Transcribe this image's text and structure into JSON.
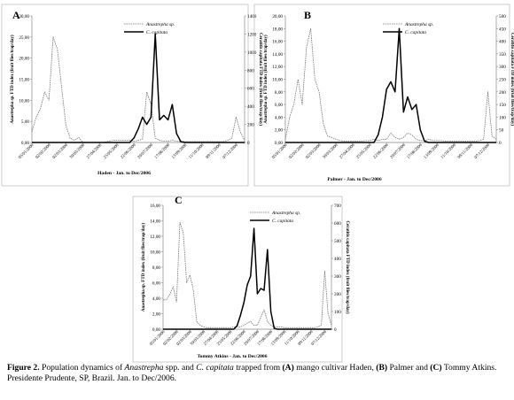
{
  "colors": {
    "anastrepha": "#777777",
    "ccapitata": "#000000",
    "axis": "#888888",
    "frame": "#aaaaaa"
  },
  "chart_data": [
    {
      "panel": "A",
      "type": "line",
      "xlabel": "Haden - Jan. to Dec/2006",
      "ylabel_left": "Anastrepha sp. FTD index (fruit flies/trap/day)",
      "ylabel_right": "Ceratitis capitata FTD index (fruit flies/trap/day)",
      "ylim_left": [
        0,
        30
      ],
      "ylim_right": [
        0,
        1400
      ],
      "yticks_left": [
        "0,00",
        "5,00",
        "10,00",
        "15,00",
        "20,00",
        "25,00",
        "30,00"
      ],
      "yticks_right": [
        "0",
        "200",
        "400",
        "600",
        "800",
        "1000",
        "1200",
        "1400"
      ],
      "xticks": [
        "05/01/2006",
        "02/02/2006",
        "02/03/2006",
        "30/03/2006",
        "27/04/2006",
        "25/05/2006",
        "22/06/2006",
        "20/07/2006",
        "17/08/2006",
        "13/09/2006",
        "11/10/2006",
        "09/11/2006",
        "07/12/2006"
      ],
      "legend": [
        "Anastrepha sp.",
        "C. capitata"
      ],
      "series": [
        {
          "name": "Anastrepha sp.",
          "axis": "left",
          "values": [
            2.5,
            6,
            8,
            12,
            10,
            25,
            22,
            13,
            4,
            1,
            0.5,
            1.2,
            0,
            0,
            0,
            0,
            0,
            0,
            0.3,
            0.5,
            0.5,
            0.5,
            0.5,
            0.5,
            0.3,
            0.5,
            0.8,
            12,
            9,
            1,
            0.5,
            0.3,
            0.3,
            0.5,
            0.3,
            0.2,
            0.2,
            0.2,
            0.2,
            0.2,
            0.2,
            0.2,
            0.2,
            0.2,
            0.2,
            0.2,
            0.5,
            1,
            6,
            2.5,
            0.5
          ]
        },
        {
          "name": "C. capitata",
          "axis": "right",
          "values": [
            0,
            0,
            0,
            0,
            0,
            0,
            0,
            0,
            0,
            0,
            0,
            0,
            0,
            0,
            0,
            0,
            0,
            0,
            0,
            0,
            0,
            0,
            0,
            0,
            50,
            150,
            280,
            200,
            280,
            1200,
            250,
            300,
            250,
            420,
            100,
            10,
            0,
            0,
            0,
            0,
            0,
            0,
            0,
            0,
            0,
            0,
            0,
            0,
            0,
            0,
            0
          ]
        }
      ]
    },
    {
      "panel": "B",
      "type": "line",
      "xlabel": "Palmer - Jan. to Dec/2006",
      "ylabel_left": "Anastrepha sp. FTD index (fruit flies/trap/day)",
      "ylabel_right": "Ceratitis capitata FTD index (fruit flies/trap/day)",
      "ylim_left": [
        0,
        20
      ],
      "ylim_right": [
        0,
        500
      ],
      "yticks_left": [
        "0,00",
        "2,00",
        "4,00",
        "6,00",
        "8,00",
        "10,00",
        "12,00",
        "14,00",
        "16,00",
        "18,00",
        "20,00"
      ],
      "yticks_right": [
        "0",
        "50",
        "100",
        "150",
        "200",
        "250",
        "300",
        "350",
        "400",
        "450",
        "500"
      ],
      "xticks": [
        "05/01/2006",
        "02/02/2006",
        "02/03/2006",
        "30/03/2006",
        "27/04/2006",
        "25/05/2006",
        "22/06/2006",
        "20/07/2006",
        "17/08/2006",
        "13/09/2006",
        "11/10/2006",
        "09/11/2006",
        "07/12/2006"
      ],
      "legend": [
        "Anastrepha sp.",
        "C. capitata"
      ],
      "series": [
        {
          "name": "Anastrepha sp.",
          "axis": "left",
          "values": [
            0.5,
            4,
            6,
            10,
            6,
            15,
            18,
            10,
            8,
            3,
            1,
            0.8,
            0.5,
            0.3,
            0.2,
            0.2,
            0.2,
            0.2,
            0.2,
            0.3,
            0.3,
            0.5,
            0.3,
            0.5,
            0.5,
            1.5,
            0.8,
            0.5,
            0.8,
            1.5,
            1.2,
            0.5,
            0.3,
            0.3,
            0.5,
            0.3,
            0.3,
            0.3,
            0.2,
            0.2,
            0.2,
            0.2,
            0.2,
            0.2,
            0.2,
            0.2,
            0.3,
            0.5,
            8,
            1,
            0.5
          ]
        },
        {
          "name": "C. capitata",
          "axis": "right",
          "values": [
            0,
            0,
            0,
            0,
            0,
            0,
            0,
            0,
            0,
            0,
            0,
            0,
            0,
            0,
            0,
            0,
            0,
            0,
            0,
            0,
            0,
            0,
            30,
            100,
            210,
            240,
            200,
            450,
            120,
            180,
            130,
            150,
            50,
            5,
            0,
            0,
            0,
            0,
            0,
            0,
            0,
            0,
            0,
            0,
            0,
            0,
            0,
            0,
            0,
            0,
            0
          ]
        }
      ]
    },
    {
      "panel": "C",
      "type": "line",
      "xlabel": "Tommy Atkins - Jan. to Dec/2006",
      "ylabel_left": "Anastrepha sp. FTD index (fruit flies/trap/day)",
      "ylabel_right": "Ceratitis capitata FTD index (fruit flies/trap/day)",
      "ylim_left": [
        0,
        16
      ],
      "ylim_right": [
        0,
        700
      ],
      "yticks_left": [
        "0,00",
        "2,00",
        "4,00",
        "6,00",
        "8,00",
        "10,00",
        "12,00",
        "14,00",
        "16,00"
      ],
      "yticks_right": [
        "0",
        "100",
        "200",
        "300",
        "400",
        "500",
        "600",
        "700"
      ],
      "xticks": [
        "05/01/2006",
        "02/02/2006",
        "02/03/2006",
        "30/03/2006",
        "27/04/2006",
        "25/05/2006",
        "22/06/2006",
        "20/07/2006",
        "17/08/2006",
        "13/09/2006",
        "11/10/2006",
        "09/11/2006",
        "07/12/2006"
      ],
      "legend": [
        "Anastrepha sp.",
        "C. capitata"
      ],
      "series": [
        {
          "name": "Anastrepha sp.",
          "axis": "left",
          "values": [
            3.8,
            3.8,
            4.5,
            5.5,
            3.5,
            13.8,
            12.5,
            6,
            7,
            5,
            1,
            0.5,
            0.3,
            0.2,
            0.2,
            0.2,
            0.2,
            0.2,
            0.2,
            0.2,
            0.2,
            0.3,
            0.3,
            0.3,
            0.5,
            0.8,
            1,
            0.5,
            0.5,
            1.5,
            2.5,
            1,
            0.5,
            0.3,
            0.3,
            0.3,
            0.2,
            0.2,
            0.2,
            0.2,
            0.2,
            0.2,
            0.2,
            0.2,
            0.2,
            0.2,
            0.3,
            0.5,
            7.5,
            2,
            0.5
          ]
        },
        {
          "name": "C. capitata",
          "axis": "right",
          "values": [
            0,
            0,
            0,
            0,
            0,
            0,
            0,
            0,
            0,
            0,
            0,
            0,
            0,
            0,
            0,
            0,
            0,
            0,
            0,
            0,
            0,
            0,
            20,
            80,
            150,
            250,
            300,
            570,
            200,
            230,
            220,
            450,
            100,
            5,
            0,
            0,
            0,
            0,
            0,
            0,
            0,
            0,
            0,
            0,
            0,
            0,
            0,
            0,
            0,
            0,
            0
          ]
        }
      ]
    }
  ],
  "caption": {
    "lead": "Figure 2.",
    "t1": " Population dynamics of ",
    "sp1": "Anastrepha",
    "t2": " spp. and ",
    "sp2": "C. capitata",
    "t3": " trapped from ",
    "a": "(A)",
    "t4": " mango cultivar Haden, ",
    "b": "(B)",
    "t5": " Palmer and ",
    "c": "(C)",
    "t6": " Tommy Atkins. Presidente Prudente, SP, Brazil. Jan. to Dec/2006."
  }
}
